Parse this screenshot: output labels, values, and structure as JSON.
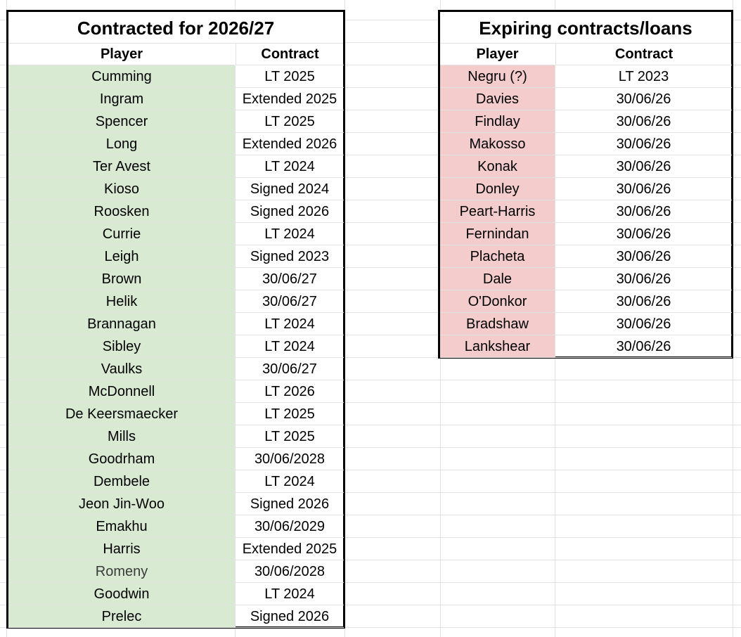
{
  "contracted": {
    "title": "Contracted for 2026/27",
    "header_player": "Player",
    "header_contract": "Contract",
    "rows": [
      {
        "player": "Cumming",
        "contract": "LT 2025"
      },
      {
        "player": "Ingram",
        "contract": "Extended 2025"
      },
      {
        "player": "Spencer",
        "contract": "LT 2025"
      },
      {
        "player": "Long",
        "contract": "Extended 2026"
      },
      {
        "player": "Ter Avest",
        "contract": "LT 2024"
      },
      {
        "player": "Kioso",
        "contract": "Signed 2024"
      },
      {
        "player": "Roosken",
        "contract": "Signed 2026"
      },
      {
        "player": "Currie",
        "contract": "LT 2024"
      },
      {
        "player": "Leigh",
        "contract": "Signed 2023"
      },
      {
        "player": "Brown",
        "contract": "30/06/27"
      },
      {
        "player": "Helik",
        "contract": "30/06/27"
      },
      {
        "player": "Brannagan",
        "contract": "LT 2024"
      },
      {
        "player": "Sibley",
        "contract": "LT 2024"
      },
      {
        "player": "Vaulks",
        "contract": "30/06/27"
      },
      {
        "player": "McDonnell",
        "contract": "LT 2026"
      },
      {
        "player": "De Keersmaecker",
        "contract": "LT 2025"
      },
      {
        "player": "Mills",
        "contract": "LT 2025"
      },
      {
        "player": "Goodrham",
        "contract": "30/06/2028"
      },
      {
        "player": "Dembele",
        "contract": "LT 2024"
      },
      {
        "player": "Jeon Jin-Woo",
        "contract": "Signed 2026"
      },
      {
        "player": "Emakhu",
        "contract": "30/06/2029"
      },
      {
        "player": "Harris",
        "contract": "Extended 2025"
      },
      {
        "player": "Romeny",
        "contract": "30/06/2028"
      },
      {
        "player": "Goodwin",
        "contract": "LT 2024"
      },
      {
        "player": "Prelec",
        "contract": "Signed 2026"
      }
    ]
  },
  "expiring": {
    "title": "Expiring contracts/loans",
    "header_player": "Player",
    "header_contract": "Contract",
    "rows": [
      {
        "player": "Negru (?)",
        "contract": "LT 2023"
      },
      {
        "player": "Davies",
        "contract": "30/06/26"
      },
      {
        "player": "Findlay",
        "contract": "30/06/26"
      },
      {
        "player": "Makosso",
        "contract": "30/06/26"
      },
      {
        "player": "Konak",
        "contract": "30/06/26"
      },
      {
        "player": "Donley",
        "contract": "30/06/26"
      },
      {
        "player": "Peart-Harris",
        "contract": "30/06/26"
      },
      {
        "player": "Fernindan",
        "contract": "30/06/26"
      },
      {
        "player": "Placheta",
        "contract": "30/06/26"
      },
      {
        "player": "Dale",
        "contract": "30/06/26"
      },
      {
        "player": "O'Donkor",
        "contract": "30/06/26"
      },
      {
        "player": "Bradshaw",
        "contract": "30/06/26"
      },
      {
        "player": "Lankshear",
        "contract": "30/06/26"
      }
    ]
  },
  "colors": {
    "contracted_fill": "#d9ead3",
    "expiring_fill": "#f4cccc",
    "gridline": "#e2e2e2",
    "border": "#000000"
  }
}
